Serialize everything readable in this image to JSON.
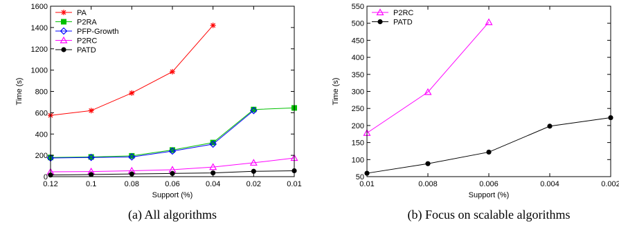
{
  "chart_data": [
    {
      "type": "line",
      "caption": "(a)  All algorithms",
      "xlabel": "Support (%)",
      "ylabel": "Time (s)",
      "categories": [
        "0.12",
        "0.1",
        "0.08",
        "0.06",
        "0.04",
        "0.02",
        "0.01"
      ],
      "ylim": [
        0,
        1600
      ],
      "yticks": [
        0,
        200,
        400,
        600,
        800,
        1000,
        1200,
        1400,
        1600
      ],
      "grid": false,
      "legend": "top-left",
      "series": [
        {
          "name": "PA",
          "color": "#ff0000",
          "marker": "star",
          "values": [
            575,
            620,
            785,
            985,
            1420,
            null,
            null
          ]
        },
        {
          "name": "P2RA",
          "color": "#00c000",
          "marker": "square",
          "values": [
            180,
            185,
            195,
            250,
            320,
            630,
            645
          ]
        },
        {
          "name": "PFP-Growth",
          "color": "#0000ff",
          "marker": "diamond",
          "values": [
            175,
            180,
            185,
            240,
            305,
            620,
            null
          ]
        },
        {
          "name": "P2RC",
          "color": "#ff00ff",
          "marker": "triangle",
          "values": [
            45,
            48,
            55,
            65,
            90,
            130,
            175
          ]
        },
        {
          "name": "PATD",
          "color": "#000000",
          "marker": "circle",
          "values": [
            15,
            20,
            25,
            30,
            35,
            50,
            55
          ]
        }
      ]
    },
    {
      "type": "line",
      "caption": "(b)  Focus on scalable algorithms",
      "xlabel": "Support (%)",
      "ylabel": "Time (s)",
      "categories": [
        "0.01",
        "0.008",
        "0.006",
        "0.004",
        "0.002"
      ],
      "ylim": [
        50,
        550
      ],
      "yticks": [
        50,
        100,
        150,
        200,
        250,
        300,
        350,
        400,
        450,
        500,
        550
      ],
      "grid": false,
      "legend": "top-left",
      "series": [
        {
          "name": "P2RC",
          "color": "#ff00ff",
          "marker": "triangle",
          "values": [
            178,
            298,
            503,
            null,
            null
          ]
        },
        {
          "name": "PATD",
          "color": "#000000",
          "marker": "circle",
          "values": [
            60,
            88,
            122,
            198,
            223
          ]
        }
      ]
    }
  ]
}
